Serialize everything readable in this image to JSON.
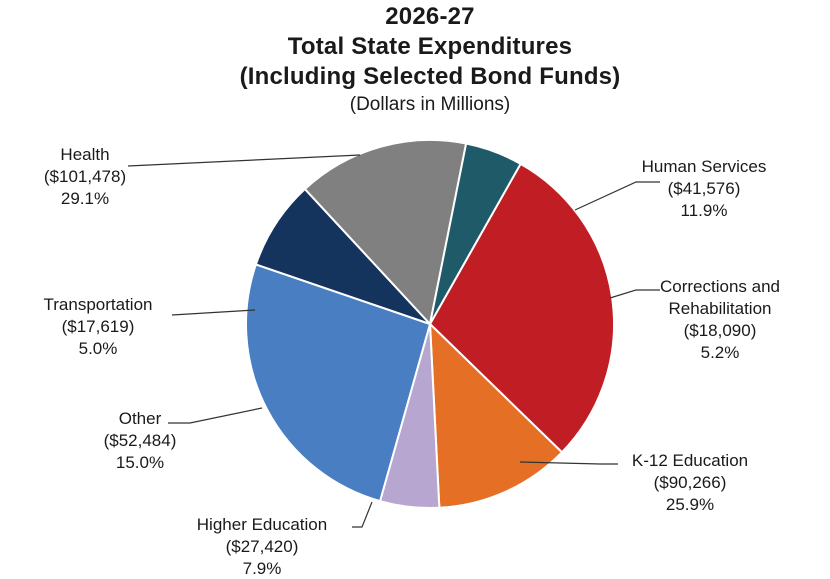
{
  "chart_data": {
    "type": "pie",
    "title_lines": [
      "2026-27",
      "Total State Expenditures",
      "(Including Selected Bond Funds)"
    ],
    "subtitle": "(Dollars in Millions)",
    "slices": [
      {
        "name": "Health",
        "value": 101478,
        "value_label": "($101,478)",
        "percent": "29.1%",
        "label_lines": [
          "Health"
        ],
        "color": "#C01E24"
      },
      {
        "name": "Human Services",
        "value": 41576,
        "value_label": "($41,576)",
        "percent": "11.9%",
        "label_lines": [
          "Human Services"
        ],
        "color": "#E57025"
      },
      {
        "name": "Corrections and Rehabilitation",
        "value": 18090,
        "value_label": "($18,090)",
        "percent": "5.2%",
        "label_lines": [
          "Corrections and",
          "Rehabilitation"
        ],
        "color": "#B7A7D0"
      },
      {
        "name": "K-12 Education",
        "value": 90266,
        "value_label": "($90,266)",
        "percent": "25.9%",
        "label_lines": [
          "K-12 Education"
        ],
        "color": "#4A7EC2"
      },
      {
        "name": "Higher Education",
        "value": 27420,
        "value_label": "($27,420)",
        "percent": "7.9%",
        "label_lines": [
          "Higher Education"
        ],
        "color": "#14345E"
      },
      {
        "name": "Other",
        "value": 52484,
        "value_label": "($52,484)",
        "percent": "15.0%",
        "label_lines": [
          "Other"
        ],
        "color": "#808080"
      },
      {
        "name": "Transportation",
        "value": 17619,
        "value_label": "($17,619)",
        "percent": "5.0%",
        "label_lines": [
          "Transportation"
        ],
        "color": "#1E5A68"
      }
    ]
  }
}
